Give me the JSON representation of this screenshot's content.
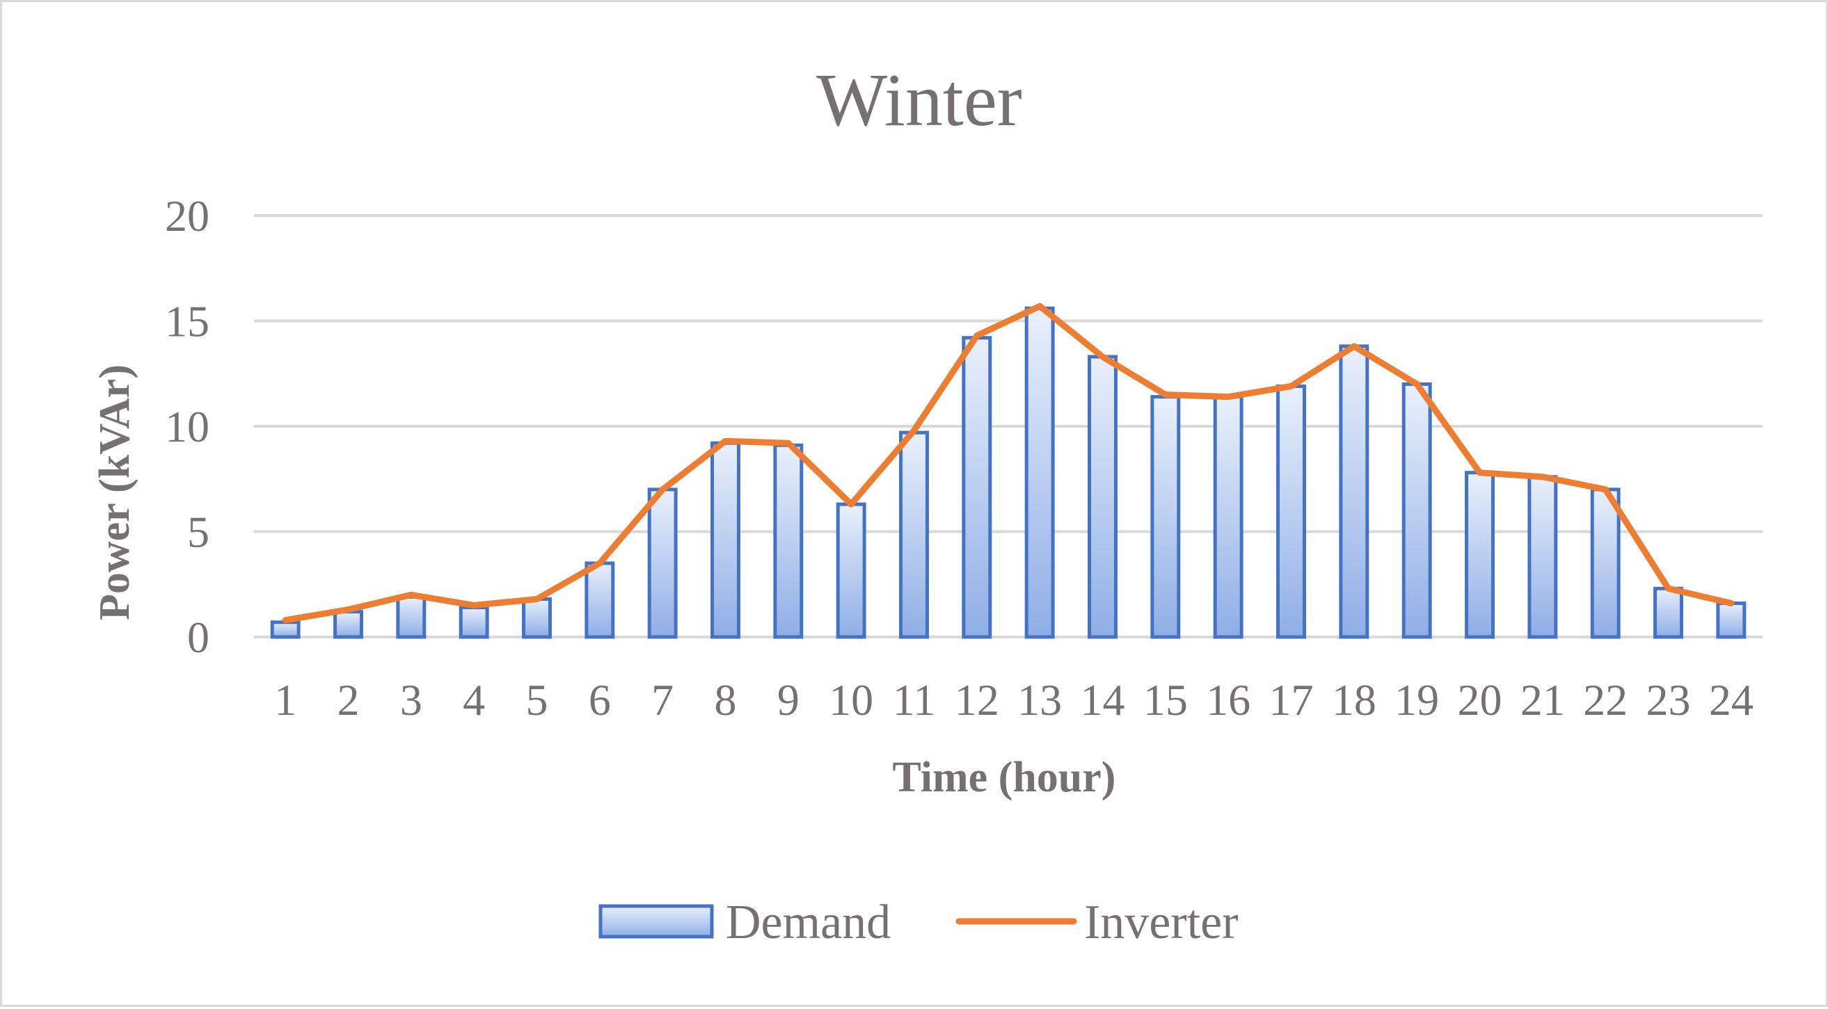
{
  "chart_data": {
    "type": "bar",
    "title": "Winter",
    "xlabel": "Time (hour)",
    "ylabel": "Power (kVAr)",
    "ylim": [
      0,
      20
    ],
    "yticks": [
      0,
      5,
      10,
      15,
      20
    ],
    "grid": true,
    "legend_position": "bottom",
    "categories": [
      "1",
      "2",
      "3",
      "4",
      "5",
      "6",
      "7",
      "8",
      "9",
      "10",
      "11",
      "12",
      "13",
      "14",
      "15",
      "16",
      "17",
      "18",
      "19",
      "20",
      "21",
      "22",
      "23",
      "24"
    ],
    "series": [
      {
        "name": "Demand",
        "type": "bar",
        "color": "#4472c4",
        "values": [
          0.7,
          1.2,
          1.9,
          1.4,
          1.8,
          3.5,
          7.0,
          9.2,
          9.1,
          6.3,
          9.7,
          14.2,
          15.6,
          13.3,
          11.4,
          11.4,
          11.9,
          13.8,
          12.0,
          7.8,
          7.6,
          7.0,
          2.3,
          1.6
        ]
      },
      {
        "name": "Inverter",
        "type": "line",
        "color": "#ed7d31",
        "values": [
          0.8,
          1.3,
          2.0,
          1.5,
          1.8,
          3.5,
          7.0,
          9.3,
          9.2,
          6.3,
          9.8,
          14.3,
          15.7,
          13.3,
          11.5,
          11.4,
          11.9,
          13.8,
          12.0,
          7.8,
          7.6,
          7.0,
          2.3,
          1.6
        ]
      }
    ]
  }
}
